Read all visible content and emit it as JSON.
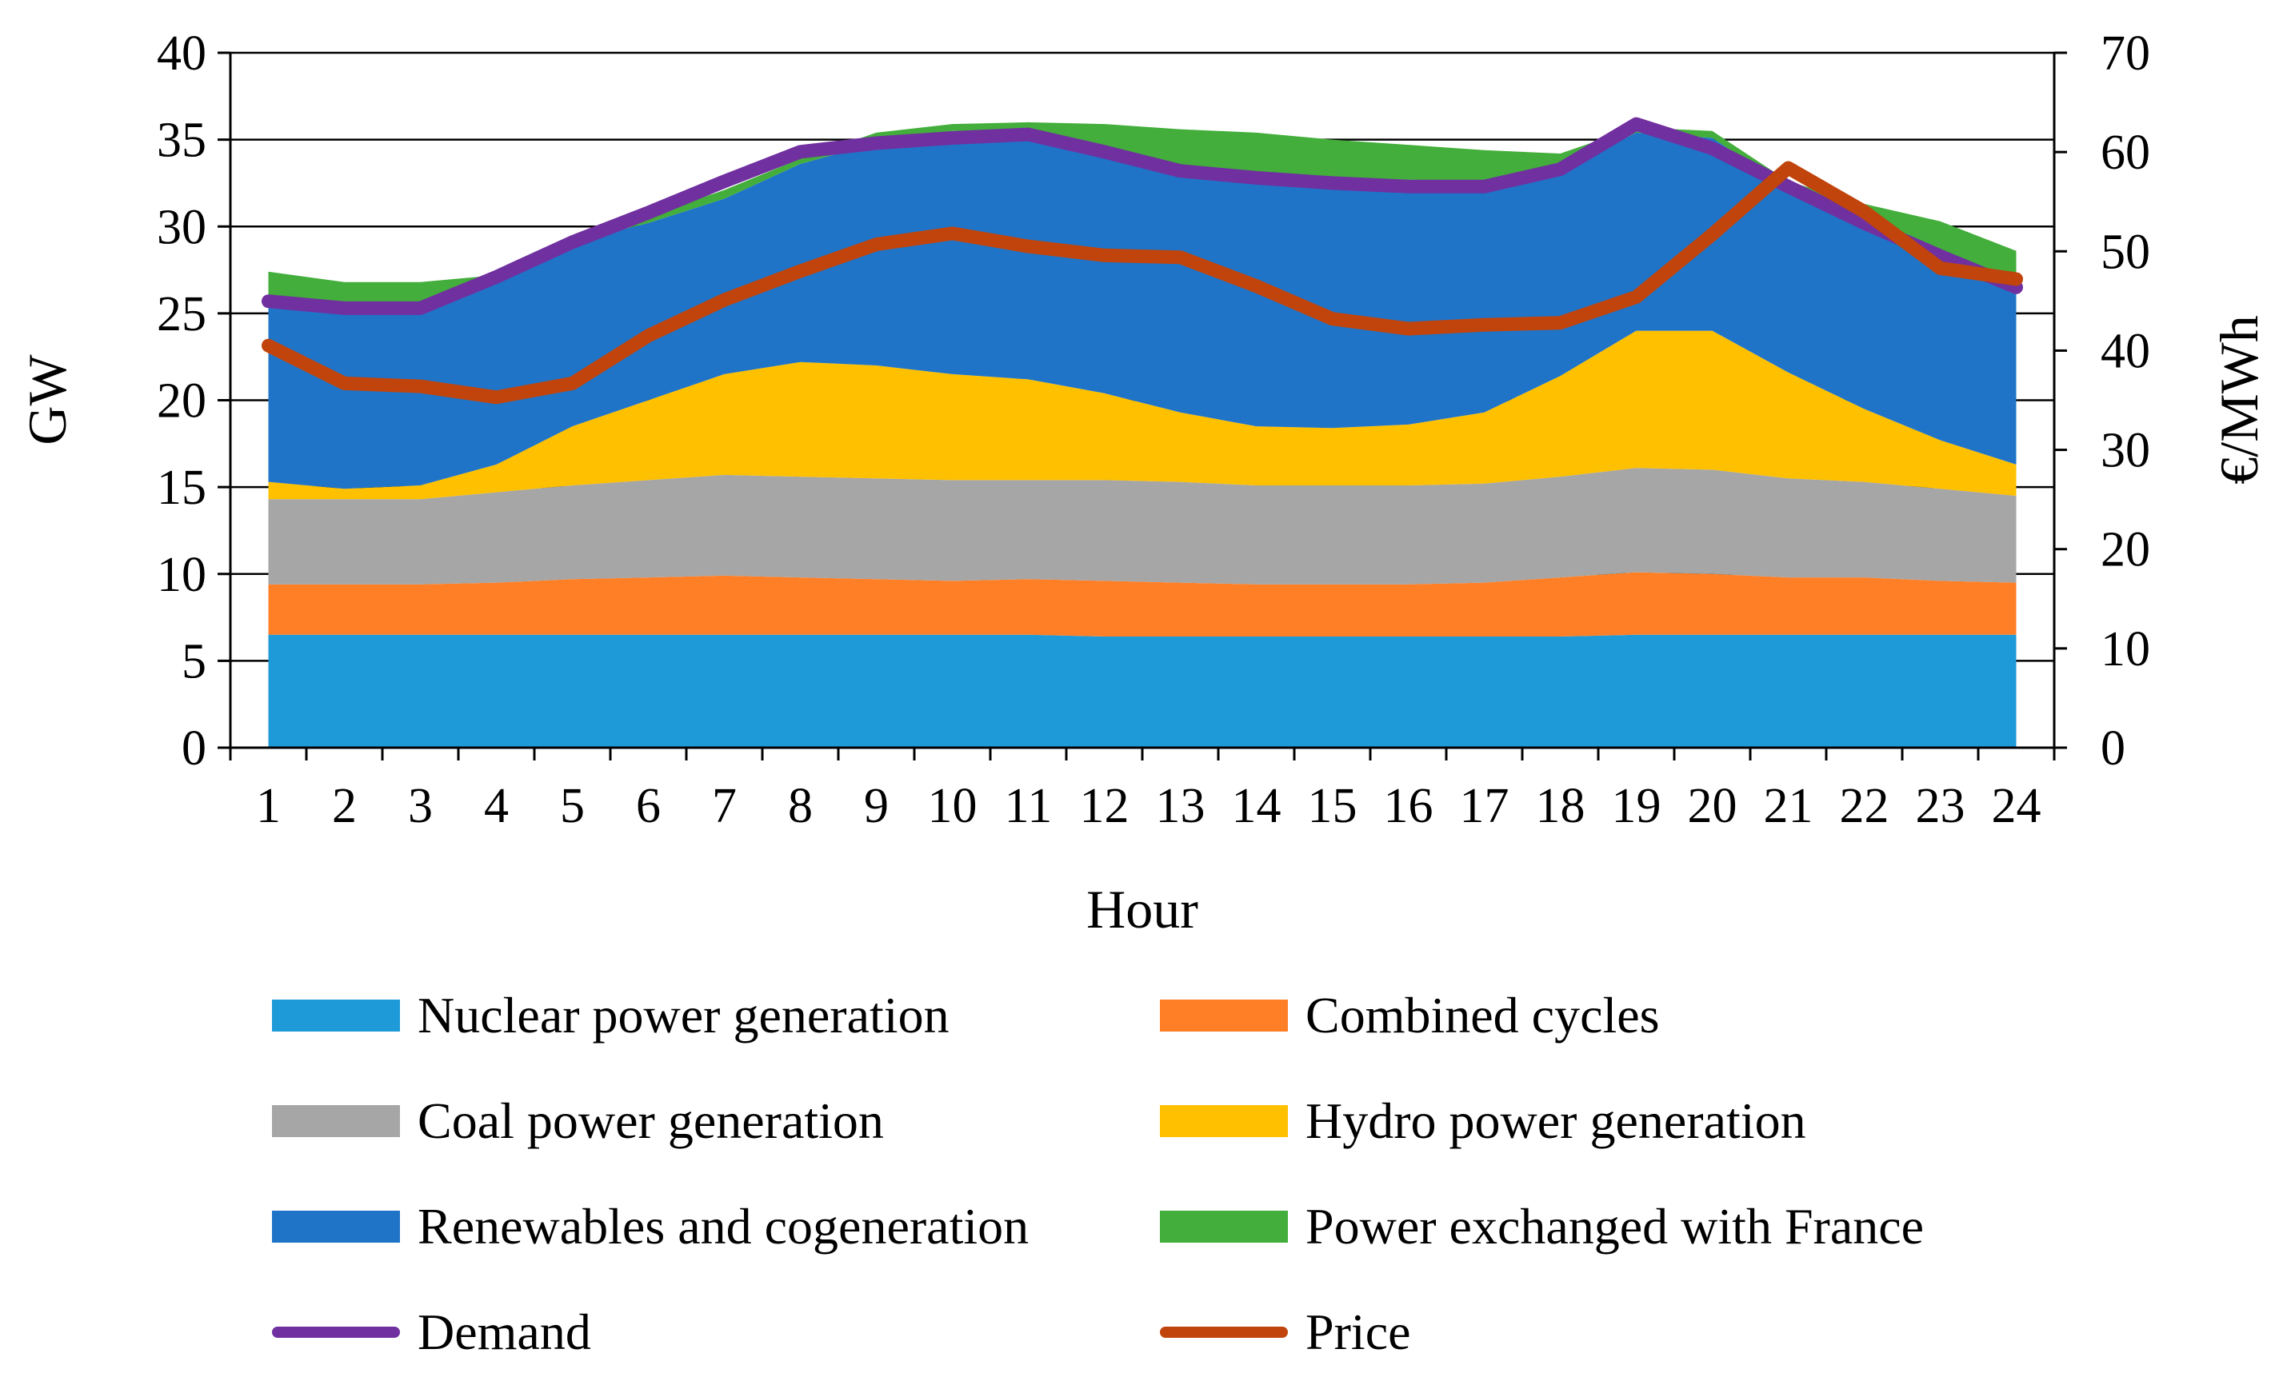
{
  "chart_data": {
    "type": "area",
    "xlabel": "Hour",
    "ylabel": "GW",
    "y2label": "€/MWh",
    "ylim": [
      0,
      40
    ],
    "y2lim": [
      0,
      70
    ],
    "yticks": [
      "0",
      "5",
      "10",
      "15",
      "20",
      "25",
      "30",
      "35",
      "40"
    ],
    "y2ticks": [
      "0",
      "10",
      "20",
      "30",
      "40",
      "50",
      "60",
      "70"
    ],
    "categories": [
      "1",
      "2",
      "3",
      "4",
      "5",
      "6",
      "7",
      "8",
      "9",
      "10",
      "11",
      "12",
      "13",
      "14",
      "15",
      "16",
      "17",
      "18",
      "19",
      "20",
      "21",
      "22",
      "23",
      "24"
    ],
    "grid": true,
    "stack_series": [
      {
        "name": "Nuclear power generation",
        "color": "#1f9ad8",
        "values": [
          6.5,
          6.5,
          6.5,
          6.5,
          6.5,
          6.5,
          6.5,
          6.5,
          6.5,
          6.5,
          6.5,
          6.4,
          6.4,
          6.4,
          6.4,
          6.4,
          6.4,
          6.4,
          6.5,
          6.5,
          6.5,
          6.5,
          6.5,
          6.5
        ]
      },
      {
        "name": "Combined cycles",
        "color": "#ff7f27",
        "values": [
          2.9,
          2.9,
          2.9,
          3.0,
          3.2,
          3.3,
          3.4,
          3.3,
          3.2,
          3.1,
          3.2,
          3.2,
          3.1,
          3.0,
          3.0,
          3.0,
          3.1,
          3.4,
          3.6,
          3.5,
          3.3,
          3.3,
          3.1,
          3.0
        ]
      },
      {
        "name": "Coal power generation",
        "color": "#a6a6a6",
        "values": [
          4.9,
          4.9,
          4.9,
          5.2,
          5.4,
          5.6,
          5.8,
          5.8,
          5.8,
          5.8,
          5.7,
          5.8,
          5.8,
          5.7,
          5.7,
          5.7,
          5.7,
          5.8,
          6.0,
          6.0,
          5.7,
          5.5,
          5.3,
          5.0
        ]
      },
      {
        "name": "Hydro power generation",
        "color": "#ffc000",
        "values": [
          1.0,
          0.6,
          0.8,
          1.6,
          3.4,
          4.6,
          5.8,
          6.6,
          6.5,
          6.1,
          5.8,
          5.0,
          4.0,
          3.4,
          3.3,
          3.5,
          4.1,
          5.8,
          7.9,
          8.0,
          6.1,
          4.2,
          2.8,
          1.8
        ]
      },
      {
        "name": "Renewables and cogeneration",
        "color": "#1f74c8",
        "values": [
          10.4,
          10.5,
          10.5,
          10.6,
          10.6,
          10.2,
          10.1,
          11.4,
          12.8,
          14.0,
          14.2,
          14.2,
          14.1,
          14.3,
          14.4,
          14.1,
          13.2,
          11.8,
          11.4,
          11.1,
          10.6,
          10.7,
          10.7,
          10.1
        ]
      },
      {
        "name": "Power exchanged with France",
        "color": "#43ae3b",
        "values": [
          1.7,
          1.4,
          1.2,
          0.3,
          0.1,
          0.4,
          0.5,
          0.3,
          0.6,
          0.4,
          0.6,
          1.3,
          2.2,
          2.6,
          2.2,
          2.0,
          1.9,
          1.0,
          0.3,
          0.4,
          0.4,
          1.1,
          1.9,
          2.2
        ]
      }
    ],
    "line_series": [
      {
        "name": "Demand",
        "axis": "left",
        "color": "#7030a0",
        "values": [
          25.7,
          25.3,
          25.3,
          27.1,
          29.1,
          30.8,
          32.6,
          34.3,
          34.8,
          35.1,
          35.3,
          34.3,
          33.2,
          32.8,
          32.5,
          32.3,
          32.3,
          33.3,
          35.9,
          34.5,
          32.3,
          30.2,
          28.3,
          26.5
        ]
      },
      {
        "name": "Price",
        "axis": "right",
        "color": "#c0440c",
        "values": [
          40.5,
          36.7,
          36.4,
          35.3,
          36.7,
          41.5,
          45.1,
          48.0,
          50.7,
          51.8,
          50.5,
          49.6,
          49.4,
          46.5,
          43.2,
          42.2,
          42.6,
          42.8,
          45.4,
          51.7,
          58.4,
          54.0,
          48.3,
          47.2
        ]
      }
    ]
  }
}
